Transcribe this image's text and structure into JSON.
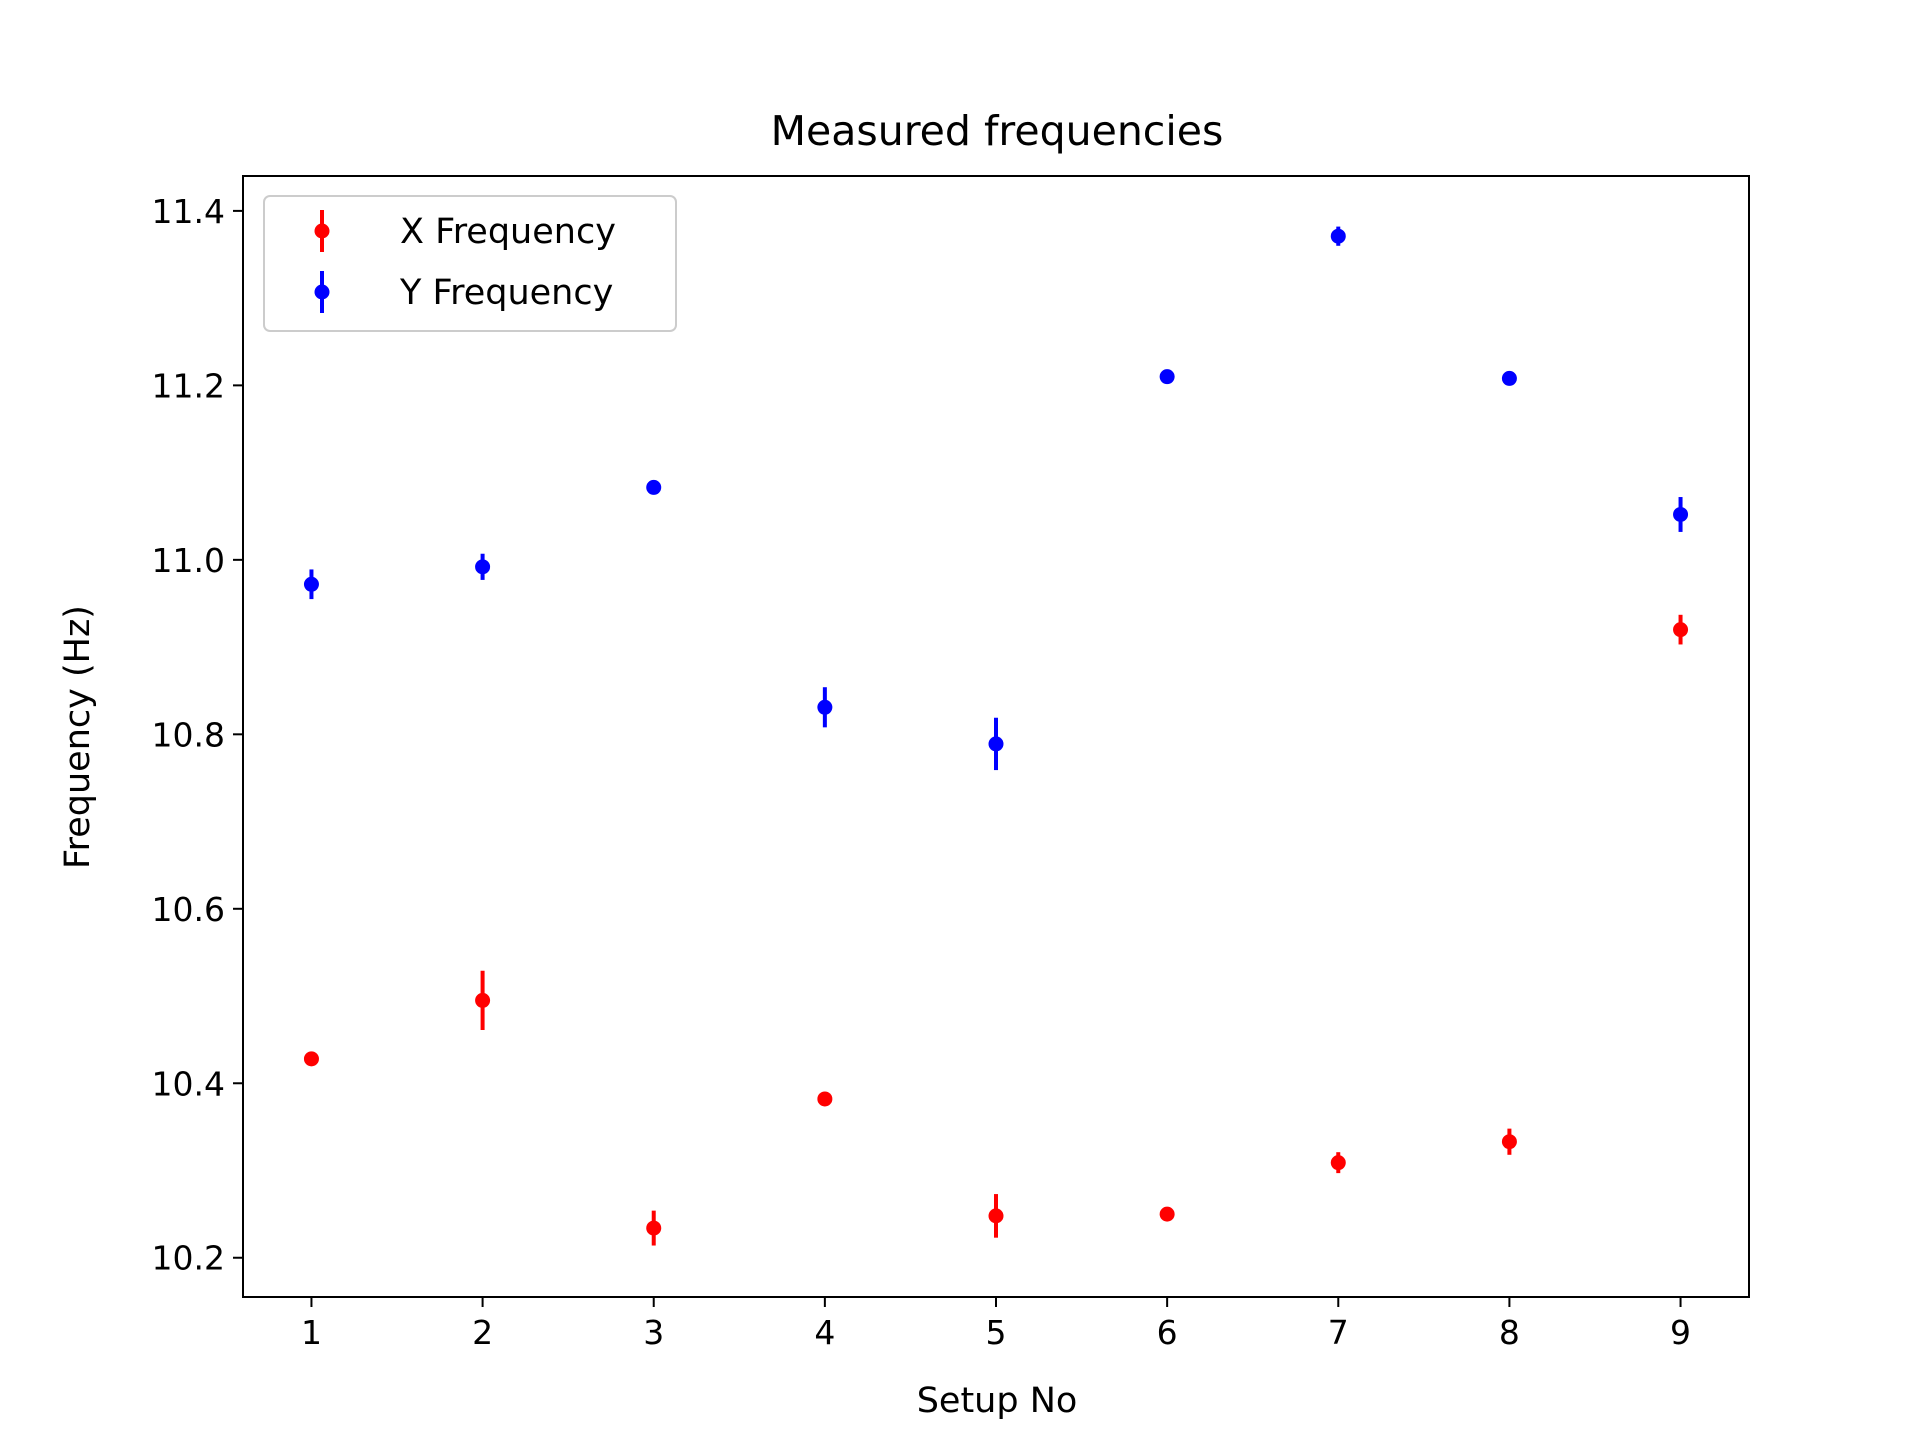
{
  "chart_data": {
    "type": "scatter",
    "title": "Measured frequencies",
    "xlabel": "Setup No",
    "ylabel": "Frequency (Hz)",
    "xlim": [
      0.6,
      9.4
    ],
    "ylim": [
      10.155,
      11.44
    ],
    "xticks": [
      1,
      2,
      3,
      4,
      5,
      6,
      7,
      8,
      9
    ],
    "xtick_labels": [
      "1",
      "2",
      "3",
      "4",
      "5",
      "6",
      "7",
      "8",
      "9"
    ],
    "yticks": [
      10.2,
      10.4,
      10.6,
      10.8,
      11.0,
      11.2,
      11.4
    ],
    "ytick_labels": [
      "10.2",
      "10.4",
      "10.6",
      "10.8",
      "11.0",
      "11.2",
      "11.4"
    ],
    "grid": false,
    "legend_position": "top-left",
    "series": [
      {
        "name": "X Frequency",
        "color": "#ff0000",
        "x": [
          1,
          2,
          3,
          4,
          5,
          6,
          7,
          8,
          9
        ],
        "y": [
          10.428,
          10.495,
          10.234,
          10.382,
          10.248,
          10.25,
          10.309,
          10.333,
          10.92
        ],
        "yerr": [
          0.008,
          0.034,
          0.02,
          0.005,
          0.025,
          0.003,
          0.012,
          0.015,
          0.017
        ]
      },
      {
        "name": "Y Frequency",
        "color": "#0000ff",
        "x": [
          1,
          2,
          3,
          4,
          5,
          6,
          7,
          8,
          9
        ],
        "y": [
          10.972,
          10.992,
          11.083,
          10.831,
          10.789,
          11.21,
          11.371,
          11.208,
          11.052
        ],
        "yerr": [
          0.017,
          0.015,
          0.003,
          0.023,
          0.03,
          0.006,
          0.011,
          0.003,
          0.02
        ]
      }
    ]
  }
}
